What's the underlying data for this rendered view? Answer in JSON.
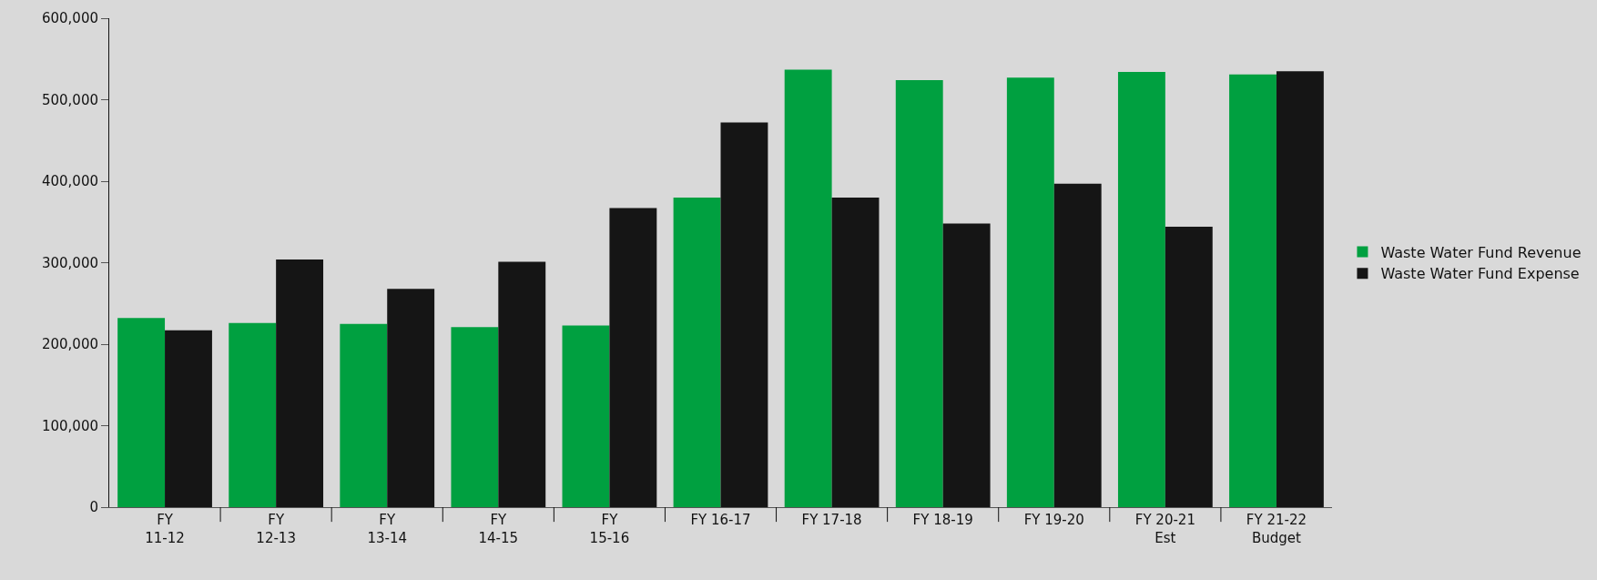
{
  "chart_data": {
    "type": "bar",
    "categories": [
      "FY\n11-12",
      "FY\n12-13",
      "FY\n13-14",
      "FY\n14-15",
      "FY\n15-16",
      "FY 16-17",
      "FY 17-18",
      "FY 18-19",
      "FY 19-20",
      "FY 20-21\nEst",
      "FY 21-22\nBudget"
    ],
    "series": [
      {
        "name": "Waste Water Fund Revenue",
        "color": "#00a040",
        "values": [
          232000,
          226000,
          225000,
          221000,
          223000,
          380000,
          537000,
          524000,
          527000,
          534000,
          531000
        ]
      },
      {
        "name": "Waste Water Fund Expense",
        "color": "#151515",
        "values": [
          217000,
          304000,
          268000,
          301000,
          367000,
          472000,
          380000,
          348000,
          397000,
          344000,
          535000
        ]
      }
    ],
    "ylim": [
      0,
      600000
    ],
    "yticks": [
      {
        "value": 0,
        "label": "0"
      },
      {
        "value": 100000,
        "label": "100,000"
      },
      {
        "value": 200000,
        "label": "200,000"
      },
      {
        "value": 300000,
        "label": "300,000"
      },
      {
        "value": 400000,
        "label": "400,000"
      },
      {
        "value": 500000,
        "label": "500,000"
      },
      {
        "value": 600000,
        "label": "600,000"
      }
    ],
    "grid": false,
    "legend": "right"
  }
}
